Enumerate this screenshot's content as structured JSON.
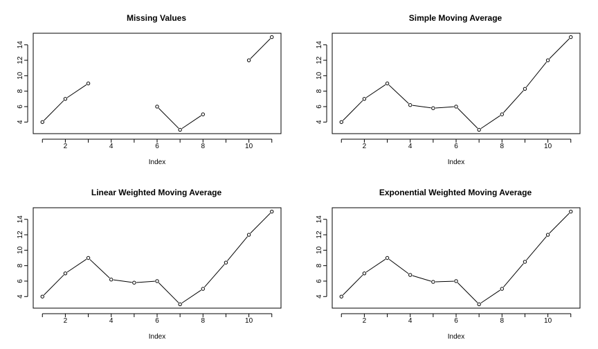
{
  "chart_data": [
    {
      "type": "line",
      "title": "Missing Values",
      "xlabel": "Index",
      "ylabel": "",
      "xlim": [
        0.6,
        11.4
      ],
      "ylim": [
        2.5,
        15.5
      ],
      "xticks": [
        2,
        4,
        6,
        8,
        10
      ],
      "yticks": [
        4,
        6,
        8,
        10,
        12,
        14
      ],
      "grid": false,
      "x": [
        1,
        2,
        3,
        4,
        5,
        6,
        7,
        8,
        9,
        10,
        11
      ],
      "values": [
        4,
        7,
        9,
        null,
        null,
        6,
        3,
        5,
        null,
        12,
        15
      ]
    },
    {
      "type": "line",
      "title": "Simple Moving Average",
      "xlabel": "Index",
      "ylabel": "",
      "xlim": [
        0.6,
        11.4
      ],
      "ylim": [
        2.5,
        15.5
      ],
      "xticks": [
        2,
        4,
        6,
        8,
        10
      ],
      "yticks": [
        4,
        6,
        8,
        10,
        12,
        14
      ],
      "grid": false,
      "x": [
        1,
        2,
        3,
        4,
        5,
        6,
        7,
        8,
        9,
        10,
        11
      ],
      "values": [
        4,
        7,
        9,
        6.2,
        5.8,
        6,
        3,
        5,
        8.3,
        12,
        15
      ]
    },
    {
      "type": "line",
      "title": "Linear Weighted Moving Average",
      "xlabel": "Index",
      "ylabel": "",
      "xlim": [
        0.6,
        11.4
      ],
      "ylim": [
        2.5,
        15.5
      ],
      "xticks": [
        2,
        4,
        6,
        8,
        10
      ],
      "yticks": [
        4,
        6,
        8,
        10,
        12,
        14
      ],
      "grid": false,
      "x": [
        1,
        2,
        3,
        4,
        5,
        6,
        7,
        8,
        9,
        10,
        11
      ],
      "values": [
        4,
        7,
        9,
        6.2,
        5.8,
        6,
        3,
        5,
        8.4,
        12,
        15
      ]
    },
    {
      "type": "line",
      "title": "Exponential Weighted Moving Average",
      "xlabel": "Index",
      "ylabel": "",
      "xlim": [
        0.6,
        11.4
      ],
      "ylim": [
        2.5,
        15.5
      ],
      "xticks": [
        2,
        4,
        6,
        8,
        10
      ],
      "yticks": [
        4,
        6,
        8,
        10,
        12,
        14
      ],
      "grid": false,
      "x": [
        1,
        2,
        3,
        4,
        5,
        6,
        7,
        8,
        9,
        10,
        11
      ],
      "values": [
        4,
        7,
        9,
        6.8,
        5.9,
        6,
        3,
        5,
        8.5,
        12,
        15
      ]
    }
  ]
}
